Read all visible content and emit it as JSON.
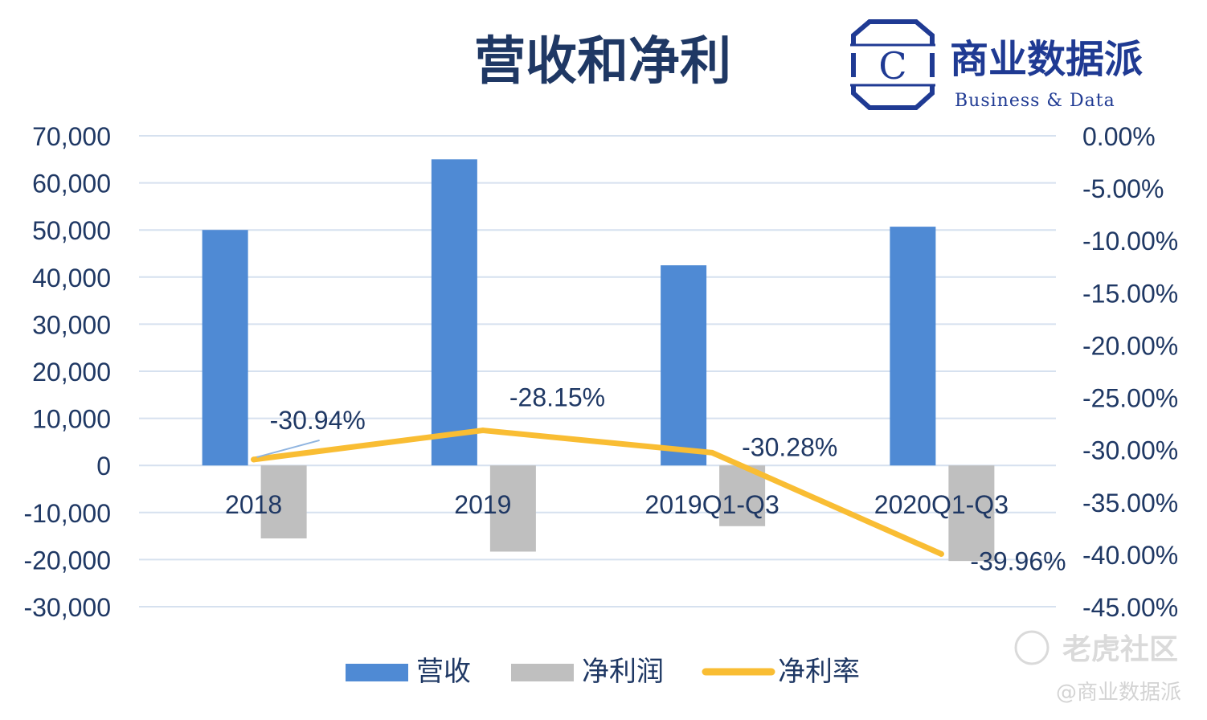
{
  "chart_data": {
    "type": "bar",
    "title": "营收和净利",
    "categories": [
      "2018",
      "2019",
      "2019Q1-Q3",
      "2020Q1-Q3"
    ],
    "series": [
      {
        "name": "营收",
        "type": "bar",
        "axis": "left",
        "values": [
          50000,
          65000,
          42500,
          50700
        ]
      },
      {
        "name": "净利润",
        "type": "bar",
        "axis": "left",
        "values": [
          -15500,
          -18300,
          -12900,
          -20300
        ]
      },
      {
        "name": "净利率",
        "type": "line",
        "axis": "right",
        "values": [
          -30.94,
          -28.15,
          -30.28,
          -39.96
        ]
      }
    ],
    "data_labels": [
      "-30.94%",
      "-28.15%",
      "-30.28%",
      "-39.96%"
    ],
    "y_left": {
      "ylim": [
        -30000,
        70000
      ],
      "ticks": [
        70000,
        60000,
        50000,
        40000,
        30000,
        20000,
        10000,
        0,
        -10000,
        -20000,
        -30000
      ],
      "tick_labels": [
        "70,000",
        "60,000",
        "50,000",
        "40,000",
        "30,000",
        "20,000",
        "10,000",
        "0",
        "-10,000",
        "-20,000",
        "-30,000"
      ]
    },
    "y_right": {
      "ylim": [
        -45,
        0
      ],
      "ticks": [
        0,
        -5,
        -10,
        -15,
        -20,
        -25,
        -30,
        -35,
        -40,
        -45
      ],
      "tick_labels": [
        "0.00%",
        "-5.00%",
        "-10.00%",
        "-15.00%",
        "-20.00%",
        "-25.00%",
        "-30.00%",
        "-35.00%",
        "-40.00%",
        "-45.00%"
      ]
    },
    "grid": true,
    "legend_position": "bottom",
    "colors": {
      "revenue": "#4f8ad4",
      "net_profit": "#bfbfbf",
      "net_margin": "#f9bd33",
      "text": "#1f3864",
      "grid": "#d6e1ef"
    }
  },
  "brand": {
    "logo_letter": "C",
    "name_cn": "商业数据派",
    "name_en": "Business & Data"
  },
  "watermark": {
    "text1": "老虎社区",
    "text2": "@商业数据派"
  }
}
